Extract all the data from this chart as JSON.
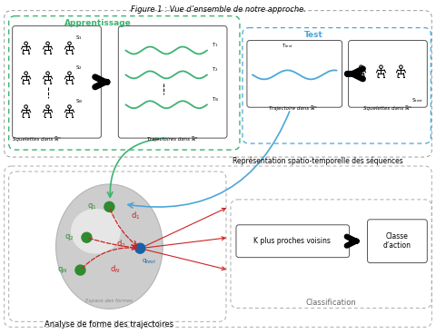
{
  "title": "Figure 1 : Vue d’ensemble de notre approche.",
  "title_fontsize": 6,
  "bg_color": "#ffffff",
  "repr_text": "Représentation spatio-temporelle des séquences",
  "classif_text": "Classification",
  "shape_text": "Analyse de forme des trajectoires",
  "knn_text": "K plus proches voisins",
  "classe_text": "Classe\nd’action",
  "apprentissage_label": "Apprentissage",
  "test_label": "Test",
  "traj_label": "Trajectoires dans ℝⁿ",
  "squelettes_label": "Squelettes dans ℝⁿ",
  "traj_test_label": "Trajectoire dans ℝⁿ",
  "squelettes_test_label": "Squelettes dans ℝⁿ",
  "espace_label": "Espace des formes",
  "green_color": "#3cb371",
  "blue_color": "#4da6d9",
  "red_color": "#cc2222",
  "dot_green": "#2e8b2e",
  "dot_blue": "#1a5fa8"
}
